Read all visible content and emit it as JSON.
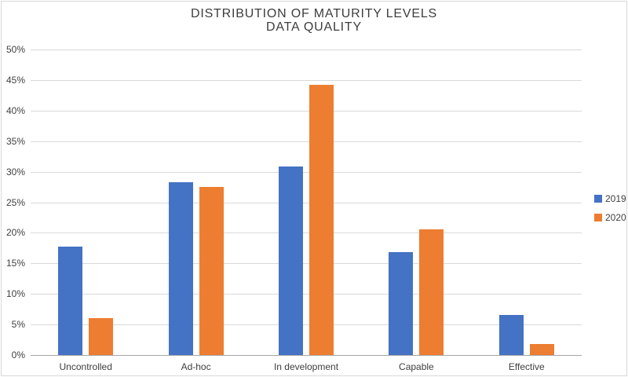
{
  "title": {
    "line1": "DISTRIBUTION OF MATURITY LEVELS",
    "line2": "DATA QUALITY"
  },
  "chart_data": {
    "type": "bar",
    "title": "DISTRIBUTION OF MATURITY LEVELS — DATA QUALITY",
    "categories": [
      "Uncontrolled",
      "Ad-hoc",
      "In development",
      "Capable",
      "Effective"
    ],
    "series": [
      {
        "name": "2019",
        "color": "#4472C4",
        "values": [
          17.7,
          28.3,
          30.8,
          16.8,
          6.6
        ]
      },
      {
        "name": "2020",
        "color": "#ED7D31",
        "values": [
          6.1,
          27.5,
          44.2,
          20.6,
          1.8
        ]
      }
    ],
    "xlabel": "",
    "ylabel": "",
    "ylim": [
      0,
      50
    ],
    "ytick_step": 5,
    "ytick_labels": [
      "0%",
      "5%",
      "10%",
      "15%",
      "20%",
      "25%",
      "30%",
      "35%",
      "40%",
      "45%",
      "50%"
    ],
    "grid": true,
    "legend_position": "right"
  },
  "colors": {
    "gridline": "#D9D9D9",
    "axis_line": "#A6A6A6",
    "text": "#404040",
    "border": "#D9D9D9",
    "background": "#FFFFFF"
  }
}
